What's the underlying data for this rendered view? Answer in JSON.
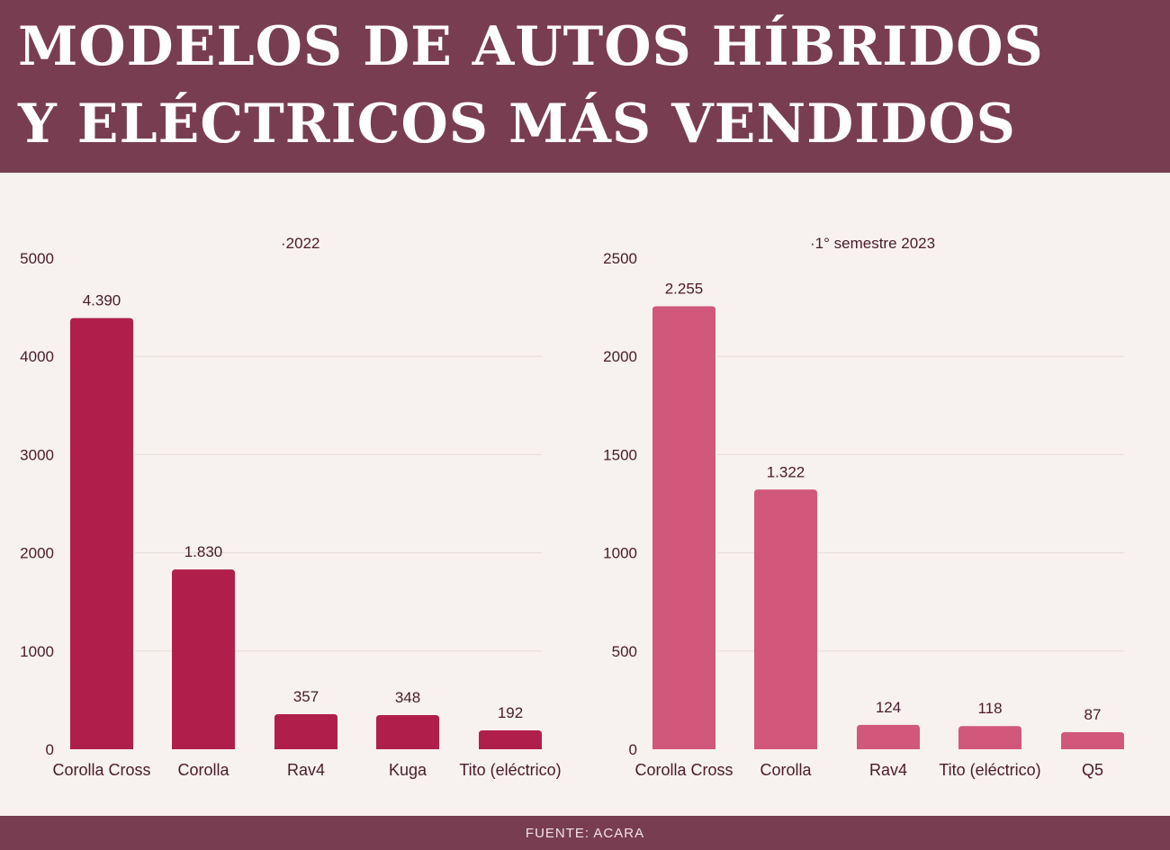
{
  "title": {
    "line1": "MODELOS DE AUTOS HÍBRIDOS",
    "line2": "Y ELÉCTRICOS MÁS VENDIDOS"
  },
  "footer": {
    "source": "FUENTE: ACARA"
  },
  "colors": {
    "header": "#793d51",
    "bar_2022": "#b01f4b",
    "bar_2023": "#d1587b",
    "background": "#f7f2ef"
  },
  "chart_data": [
    {
      "type": "bar",
      "subtitle": "·2022",
      "categories": [
        "Corolla Cross",
        "Corolla",
        "Rav4",
        "Kuga",
        "Tito (eléctrico)"
      ],
      "values": [
        4390,
        1830,
        357,
        348,
        192
      ],
      "value_labels": [
        "4.390",
        "1.830",
        "357",
        "348",
        "192"
      ],
      "ylim": [
        0,
        5000
      ],
      "yticks": [
        0,
        1000,
        2000,
        3000,
        4000,
        5000
      ],
      "grid": true,
      "color": "#b01f4b"
    },
    {
      "type": "bar",
      "subtitle": "·1° semestre 2023",
      "categories": [
        "Corolla Cross",
        "Corolla",
        "Rav4",
        "Tito (eléctrico)",
        "Q5"
      ],
      "values": [
        2255,
        1322,
        124,
        118,
        87
      ],
      "value_labels": [
        "2.255",
        "1.322",
        "124",
        "118",
        "87"
      ],
      "ylim": [
        0,
        2500
      ],
      "yticks": [
        0,
        500,
        1000,
        1500,
        2000,
        2500
      ],
      "grid": true,
      "color": "#d1587b"
    }
  ]
}
